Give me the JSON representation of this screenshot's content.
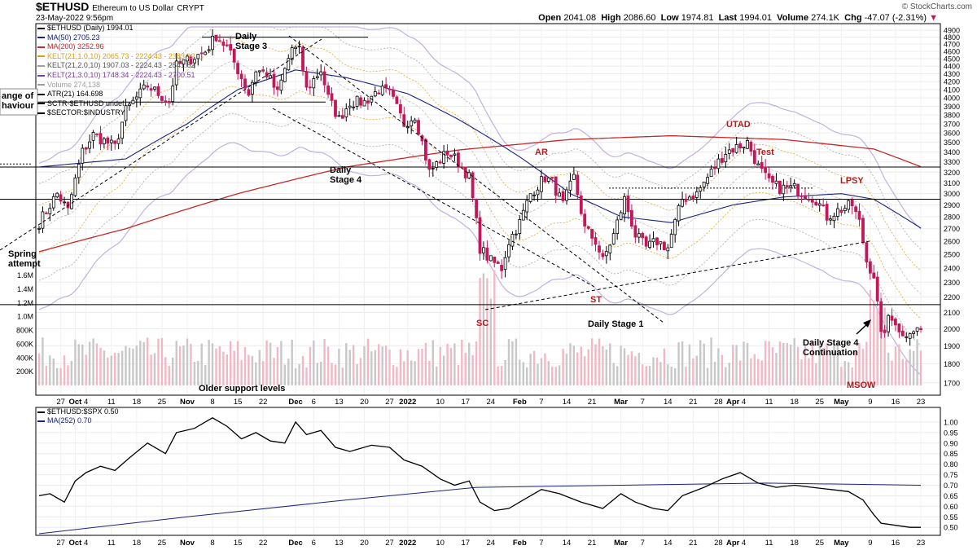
{
  "header": {
    "symbol": "$ETHUSD",
    "name": "Ethereum to US Dollar",
    "exchange": "CRYPT",
    "date": "23-May-2022 9:56pm",
    "brand": "© StockCharts.com",
    "open_label": "Open",
    "open": "2041.08",
    "high_label": "High",
    "high": "2086.60",
    "low_label": "Low",
    "low": "1974.81",
    "last_label": "Last",
    "last": "1994.01",
    "volume_label": "Volume",
    "volume": "274.1K",
    "chg_label": "Chg",
    "chg": "-47.07 (-2.31%)",
    "chg_icon": "down-triangle-icon"
  },
  "legend": [
    {
      "text": "$ETHUSD (Daily) 1994.01",
      "color": "#000000",
      "icon": "candle-icon"
    },
    {
      "text": "MA(50) 2705.23",
      "color": "#1a237e"
    },
    {
      "text": "MA(200) 3252.96",
      "color": "#c62828"
    },
    {
      "text": "KELT(21,1.0,10) 2065.73 - 2224.43 - 2383.12",
      "color": "#d4a017"
    },
    {
      "text": "KELT(21,2.0,10) 1907.03 - 2224.43 - 2541.82",
      "color": "#9e9e9e"
    },
    {
      "text": "KELT(21,3.0,10) 1748.34 - 2224.43 - 2700.51",
      "color": "#7b3fa0"
    },
    {
      "text": "Volume 274,138",
      "color": "#9e9e9e",
      "icon": "volume-bars-icon"
    },
    {
      "text": "ATR(21) 164.698",
      "color": "#000000"
    },
    {
      "text": "SCTR-$ETHUSD undef",
      "color": "#000000"
    },
    {
      "text": "$SECTOR:$INDUSTRY",
      "color": "#000000"
    }
  ],
  "legend2": [
    {
      "text": "$ETHUSD:$SPX 0.50",
      "color": "#000000"
    },
    {
      "text": "MA(252) 0.70",
      "color": "#1a237e"
    }
  ],
  "annotations": {
    "range": "ange of\nhaviour",
    "daily_stage3": "Daily\nStage 3",
    "daily_stage4": "Daily\nStage 4",
    "spring": "Spring\nattempt",
    "ar": "AR",
    "sc": "SC",
    "st": "ST",
    "daily_stage1": "Daily Stage 1",
    "utad": "UTAD",
    "test": "Test",
    "lpsy": "LPSY",
    "stage4_cont": "Daily Stage 4\nContinuation",
    "msow": "MSOW",
    "older_support": "Older support levels"
  },
  "colors": {
    "up": "#000000",
    "down": "#c2185b",
    "ma50": "#1a237e",
    "ma200": "#c62828",
    "kelt1": "#d4a017",
    "kelt2": "#9e9e9e",
    "kelt3": "#b39ddb",
    "vol_up": "#c8c8c8",
    "vol_down": "#f2b8c6"
  },
  "chart_data": [
    {
      "type": "candlestick",
      "title": "$ETHUSD (Daily)",
      "y_scale": "log",
      "ylim": [
        1650,
        4950
      ],
      "y_ticks": [
        1700,
        1800,
        1900,
        2000,
        2100,
        2200,
        2300,
        2400,
        2500,
        2600,
        2700,
        2800,
        2900,
        3000,
        3100,
        3200,
        3300,
        3400,
        3500,
        3600,
        3700,
        3800,
        3900,
        4000,
        4100,
        4200,
        4300,
        4400,
        4500,
        4600,
        4700,
        4800,
        4900
      ],
      "volume_ticks": [
        "200K",
        "400K",
        "600K",
        "800K",
        "1.0M",
        "1.2M",
        "1.4M",
        "1.6M"
      ],
      "volume_tick_values": [
        200000,
        400000,
        600000,
        800000,
        1000000,
        1200000,
        1400000,
        1600000
      ],
      "x_ticks": [
        "27",
        "Oct",
        "4",
        "11",
        "18",
        "25",
        "Nov",
        "8",
        "15",
        "22",
        "Dec",
        "6",
        "13",
        "20",
        "27",
        "2022",
        "10",
        "17",
        "24",
        "Feb",
        "7",
        "14",
        "21",
        "Mar",
        "7",
        "14",
        "21",
        "28",
        "Apr",
        "4",
        "11",
        "18",
        "25",
        "May",
        "9",
        "16",
        "23"
      ],
      "x_tick_dates": [
        "2021-09-27",
        "2021-10-01",
        "2021-10-04",
        "2021-10-11",
        "2021-10-18",
        "2021-10-25",
        "2021-11-01",
        "2021-11-08",
        "2021-11-15",
        "2021-11-22",
        "2021-12-01",
        "2021-12-06",
        "2021-12-13",
        "2021-12-20",
        "2021-12-27",
        "2022-01-01",
        "2022-01-10",
        "2022-01-17",
        "2022-01-24",
        "2022-02-01",
        "2022-02-07",
        "2022-02-14",
        "2022-02-21",
        "2022-03-01",
        "2022-03-07",
        "2022-03-14",
        "2022-03-21",
        "2022-03-28",
        "2022-04-01",
        "2022-04-04",
        "2022-04-11",
        "2022-04-18",
        "2022-04-25",
        "2022-05-01",
        "2022-05-09",
        "2022-05-16",
        "2022-05-23"
      ],
      "price_keypoints": [
        [
          "2021-09-21",
          2750
        ],
        [
          "2021-09-26",
          3000
        ],
        [
          "2021-09-29",
          2850
        ],
        [
          "2021-10-03",
          3400
        ],
        [
          "2021-10-06",
          3580
        ],
        [
          "2021-10-12",
          3450
        ],
        [
          "2021-10-15",
          3850
        ],
        [
          "2021-10-21",
          4150
        ],
        [
          "2021-10-27",
          3950
        ],
        [
          "2021-10-29",
          4400
        ],
        [
          "2021-11-02",
          4500
        ],
        [
          "2021-11-06",
          4600
        ],
        [
          "2021-11-09",
          4820
        ],
        [
          "2021-11-12",
          4650
        ],
        [
          "2021-11-16",
          4250
        ],
        [
          "2021-11-18",
          4050
        ],
        [
          "2021-11-20",
          4350
        ],
        [
          "2021-11-23",
          4300
        ],
        [
          "2021-11-26",
          4050
        ],
        [
          "2021-11-30",
          4650
        ],
        [
          "2021-12-02",
          4600
        ],
        [
          "2021-12-04",
          4100
        ],
        [
          "2021-12-08",
          4350
        ],
        [
          "2021-12-10",
          4000
        ],
        [
          "2021-12-13",
          3750
        ],
        [
          "2021-12-16",
          3950
        ],
        [
          "2021-12-20",
          3950
        ],
        [
          "2021-12-24",
          4100
        ],
        [
          "2021-12-27",
          4050
        ],
        [
          "2021-12-31",
          3700
        ],
        [
          "2022-01-03",
          3800
        ],
        [
          "2022-01-07",
          3200
        ],
        [
          "2022-01-12",
          3400
        ],
        [
          "2022-01-15",
          3300
        ],
        [
          "2022-01-18",
          3150
        ],
        [
          "2022-01-21",
          2550
        ],
        [
          "2022-01-24",
          2450
        ],
        [
          "2022-01-27",
          2400
        ],
        [
          "2022-01-29",
          2600
        ],
        [
          "2022-02-01",
          2750
        ],
        [
          "2022-02-04",
          3000
        ],
        [
          "2022-02-08",
          3150
        ],
        [
          "2022-02-10",
          3100
        ],
        [
          "2022-02-13",
          2900
        ],
        [
          "2022-02-16",
          3150
        ],
        [
          "2022-02-19",
          2700
        ],
        [
          "2022-02-22",
          2600
        ],
        [
          "2022-02-24",
          2450
        ],
        [
          "2022-02-27",
          2650
        ],
        [
          "2022-03-02",
          2950
        ],
        [
          "2022-03-05",
          2650
        ],
        [
          "2022-03-08",
          2550
        ],
        [
          "2022-03-11",
          2600
        ],
        [
          "2022-03-14",
          2550
        ],
        [
          "2022-03-18",
          2950
        ],
        [
          "2022-03-22",
          3000
        ],
        [
          "2022-03-27",
          3250
        ],
        [
          "2022-03-30",
          3400
        ],
        [
          "2022-04-02",
          3450
        ],
        [
          "2022-04-05",
          3500
        ],
        [
          "2022-04-08",
          3250
        ],
        [
          "2022-04-11",
          3100
        ],
        [
          "2022-04-14",
          3050
        ],
        [
          "2022-04-18",
          3050
        ],
        [
          "2022-04-21",
          3000
        ],
        [
          "2022-04-24",
          2950
        ],
        [
          "2022-04-27",
          2800
        ],
        [
          "2022-04-30",
          2850
        ],
        [
          "2022-05-04",
          2900
        ],
        [
          "2022-05-06",
          2750
        ],
        [
          "2022-05-08",
          2450
        ],
        [
          "2022-05-10",
          2350
        ],
        [
          "2022-05-12",
          1950
        ],
        [
          "2022-05-14",
          2050
        ],
        [
          "2022-05-16",
          2050
        ],
        [
          "2022-05-18",
          1950
        ],
        [
          "2022-05-20",
          2000
        ],
        [
          "2022-05-23",
          1994
        ]
      ],
      "ma50_keypoints": [
        [
          "2021-09-21",
          3250
        ],
        [
          "2021-10-15",
          3330
        ],
        [
          "2021-11-01",
          3700
        ],
        [
          "2021-11-15",
          4100
        ],
        [
          "2021-12-01",
          4350
        ],
        [
          "2021-12-15",
          4250
        ],
        [
          "2022-01-01",
          4050
        ],
        [
          "2022-01-15",
          3750
        ],
        [
          "2022-02-01",
          3350
        ],
        [
          "2022-02-15",
          3000
        ],
        [
          "2022-03-01",
          2800
        ],
        [
          "2022-03-15",
          2750
        ],
        [
          "2022-04-01",
          2900
        ],
        [
          "2022-04-15",
          2970
        ],
        [
          "2022-05-01",
          3000
        ],
        [
          "2022-05-10",
          2950
        ],
        [
          "2022-05-23",
          2705
        ]
      ],
      "ma200_keypoints": [
        [
          "2021-09-21",
          2520
        ],
        [
          "2021-10-15",
          2700
        ],
        [
          "2021-11-15",
          3000
        ],
        [
          "2021-12-15",
          3250
        ],
        [
          "2022-01-15",
          3420
        ],
        [
          "2022-02-15",
          3530
        ],
        [
          "2022-03-15",
          3570
        ],
        [
          "2022-04-15",
          3530
        ],
        [
          "2022-05-10",
          3430
        ],
        [
          "2022-05-23",
          3253
        ]
      ],
      "support_levels": [
        4800,
        3950,
        3250,
        2950,
        2150
      ],
      "series": [
        {
          "name": "MA(50)",
          "value": 2705.23
        },
        {
          "name": "MA(200)",
          "value": 3252.96
        },
        {
          "name": "KELT(21,1.0,10)",
          "values": [
            2065.73,
            2224.43,
            2383.12
          ]
        },
        {
          "name": "KELT(21,2.0,10)",
          "values": [
            1907.03,
            2224.43,
            2541.82
          ]
        },
        {
          "name": "KELT(21,3.0,10)",
          "values": [
            1748.34,
            2224.43,
            2700.51
          ]
        }
      ]
    },
    {
      "type": "line",
      "title": "$ETHUSD:$SPX",
      "ylim": [
        0.47,
        1.05
      ],
      "y_ticks": [
        0.5,
        0.55,
        0.6,
        0.65,
        0.7,
        0.75,
        0.8,
        0.85,
        0.9,
        0.95,
        1.0
      ],
      "series": [
        {
          "name": "$ETHUSD:$SPX",
          "keypoints": [
            [
              "2021-09-21",
              0.65
            ],
            [
              "2021-09-24",
              0.66
            ],
            [
              "2021-09-28",
              0.62
            ],
            [
              "2021-10-01",
              0.72
            ],
            [
              "2021-10-04",
              0.76
            ],
            [
              "2021-10-08",
              0.79
            ],
            [
              "2021-10-12",
              0.77
            ],
            [
              "2021-10-16",
              0.83
            ],
            [
              "2021-10-21",
              0.9
            ],
            [
              "2021-10-26",
              0.85
            ],
            [
              "2021-10-29",
              0.95
            ],
            [
              "2021-11-03",
              0.97
            ],
            [
              "2021-11-08",
              1.02
            ],
            [
              "2021-11-12",
              0.98
            ],
            [
              "2021-11-16",
              0.92
            ],
            [
              "2021-11-20",
              0.95
            ],
            [
              "2021-11-24",
              0.91
            ],
            [
              "2021-11-28",
              0.9
            ],
            [
              "2021-12-01",
              1.0
            ],
            [
              "2021-12-04",
              0.94
            ],
            [
              "2021-12-08",
              0.96
            ],
            [
              "2021-12-12",
              0.88
            ],
            [
              "2021-12-16",
              0.86
            ],
            [
              "2021-12-22",
              0.89
            ],
            [
              "2021-12-27",
              0.88
            ],
            [
              "2021-12-31",
              0.82
            ],
            [
              "2022-01-05",
              0.79
            ],
            [
              "2022-01-10",
              0.73
            ],
            [
              "2022-01-14",
              0.7
            ],
            [
              "2022-01-18",
              0.72
            ],
            [
              "2022-01-21",
              0.62
            ],
            [
              "2022-01-25",
              0.58
            ],
            [
              "2022-01-29",
              0.59
            ],
            [
              "2022-02-02",
              0.63
            ],
            [
              "2022-02-07",
              0.68
            ],
            [
              "2022-02-12",
              0.66
            ],
            [
              "2022-02-18",
              0.62
            ],
            [
              "2022-02-24",
              0.59
            ],
            [
              "2022-03-01",
              0.66
            ],
            [
              "2022-03-05",
              0.62
            ],
            [
              "2022-03-10",
              0.59
            ],
            [
              "2022-03-14",
              0.58
            ],
            [
              "2022-03-18",
              0.65
            ],
            [
              "2022-03-24",
              0.69
            ],
            [
              "2022-03-29",
              0.73
            ],
            [
              "2022-04-03",
              0.76
            ],
            [
              "2022-04-08",
              0.71
            ],
            [
              "2022-04-13",
              0.69
            ],
            [
              "2022-04-18",
              0.7
            ],
            [
              "2022-04-23",
              0.69
            ],
            [
              "2022-04-28",
              0.68
            ],
            [
              "2022-05-03",
              0.67
            ],
            [
              "2022-05-07",
              0.63
            ],
            [
              "2022-05-10",
              0.56
            ],
            [
              "2022-05-12",
              0.52
            ],
            [
              "2022-05-16",
              0.51
            ],
            [
              "2022-05-20",
              0.5
            ],
            [
              "2022-05-23",
              0.5
            ]
          ]
        },
        {
          "name": "MA(252)",
          "keypoints": [
            [
              "2021-09-21",
              0.47
            ],
            [
              "2021-11-01",
              0.55
            ],
            [
              "2021-12-15",
              0.63
            ],
            [
              "2022-01-20",
              0.69
            ],
            [
              "2022-03-01",
              0.7
            ],
            [
              "2022-04-10",
              0.71
            ],
            [
              "2022-05-23",
              0.7
            ]
          ]
        }
      ]
    }
  ]
}
